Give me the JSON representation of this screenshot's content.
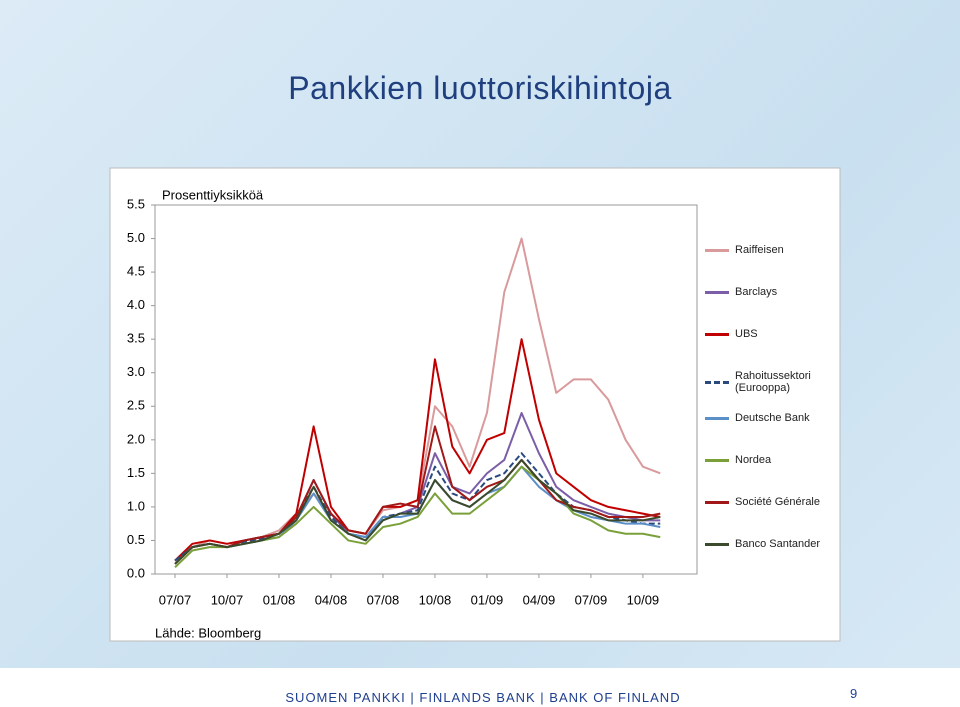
{
  "slide": {
    "title": "Pankkien luottoriskihintoja",
    "footer": "SUOMEN PANKKI | FINLANDS BANK | BANK OF FINLAND",
    "page_number": "9"
  },
  "chart_data": {
    "type": "line",
    "ylabel": "Prosenttiyksikköä",
    "source": "Lähde: Bloomberg",
    "categories": [
      "07/07",
      null,
      null,
      "10/07",
      null,
      null,
      "01/08",
      null,
      null,
      "04/08",
      null,
      null,
      "07/08",
      null,
      null,
      "10/08",
      null,
      null,
      "01/09",
      null,
      null,
      "04/09",
      null,
      null,
      "07/09",
      null,
      null,
      "10/09",
      null
    ],
    "ylim": [
      0,
      5.5
    ],
    "yticks": [
      {
        "value": 0,
        "label": "0.0"
      },
      0.5,
      {
        "value": 1,
        "label": "1.0"
      },
      1.5,
      {
        "value": 2,
        "label": "2.0"
      },
      2.5,
      {
        "value": 3,
        "label": "3.0"
      },
      3.5,
      {
        "value": 4,
        "label": "4.0"
      },
      4.5,
      {
        "value": 5,
        "label": "5.0"
      },
      5.5
    ],
    "legend": "right",
    "series": [
      {
        "name": "Raiffeisen",
        "color": "#d99a9c",
        "dash": "solid",
        "values": [
          0.2,
          0.4,
          0.5,
          0.45,
          0.5,
          0.55,
          0.65,
          0.9,
          1.2,
          0.9,
          0.65,
          0.6,
          0.95,
          1.0,
          1.1,
          2.5,
          2.2,
          1.6,
          2.4,
          4.2,
          5.0,
          3.8,
          2.7,
          2.9,
          2.9,
          2.6,
          2.0,
          1.6,
          1.5
        ]
      },
      {
        "name": "Barclays",
        "color": "#7b5ea7",
        "dash": "solid",
        "values": [
          0.2,
          0.4,
          0.45,
          0.4,
          0.5,
          0.55,
          0.6,
          0.85,
          1.4,
          0.9,
          0.6,
          0.55,
          0.8,
          0.9,
          1.0,
          1.8,
          1.3,
          1.2,
          1.5,
          1.7,
          2.4,
          1.8,
          1.3,
          1.1,
          1.0,
          0.9,
          0.85,
          0.8,
          0.8
        ]
      },
      {
        "name": "UBS",
        "color": "#c00000",
        "dash": "solid",
        "values": [
          0.2,
          0.45,
          0.5,
          0.45,
          0.5,
          0.55,
          0.6,
          0.9,
          2.2,
          1.0,
          0.65,
          0.6,
          1.0,
          1.0,
          1.1,
          3.2,
          1.9,
          1.5,
          2.0,
          2.1,
          3.5,
          2.3,
          1.5,
          1.3,
          1.1,
          1.0,
          0.95,
          0.9,
          0.85
        ]
      },
      {
        "name": "Rahoitussektori (Eurooppa)",
        "color": "#2a4a7f",
        "dash": "dashed",
        "values": [
          0.2,
          0.4,
          0.45,
          0.4,
          0.48,
          0.52,
          0.6,
          0.85,
          1.3,
          0.85,
          0.6,
          0.55,
          0.85,
          0.9,
          0.95,
          1.6,
          1.2,
          1.1,
          1.4,
          1.5,
          1.8,
          1.5,
          1.2,
          1.0,
          0.95,
          0.85,
          0.8,
          0.75,
          0.75
        ]
      },
      {
        "name": "Deutsche Bank",
        "color": "#5b8fc7",
        "dash": "solid",
        "values": [
          0.15,
          0.4,
          0.45,
          0.4,
          0.45,
          0.5,
          0.55,
          0.8,
          1.2,
          0.8,
          0.6,
          0.55,
          0.85,
          0.85,
          0.9,
          1.4,
          1.1,
          1.0,
          1.2,
          1.3,
          1.6,
          1.3,
          1.1,
          0.95,
          0.85,
          0.8,
          0.75,
          0.75,
          0.7
        ]
      },
      {
        "name": "Nordea",
        "color": "#7aa03a",
        "dash": "solid",
        "values": [
          0.1,
          0.35,
          0.4,
          0.4,
          0.45,
          0.5,
          0.55,
          0.75,
          1.0,
          0.75,
          0.5,
          0.45,
          0.7,
          0.75,
          0.85,
          1.2,
          0.9,
          0.9,
          1.1,
          1.3,
          1.6,
          1.4,
          1.2,
          0.9,
          0.8,
          0.65,
          0.6,
          0.6,
          0.55
        ]
      },
      {
        "name": "Société Générale",
        "color": "#a01818",
        "dash": "solid",
        "values": [
          0.15,
          0.4,
          0.45,
          0.4,
          0.5,
          0.55,
          0.6,
          0.85,
          1.4,
          0.9,
          0.65,
          0.6,
          1.0,
          1.05,
          1.0,
          2.2,
          1.3,
          1.1,
          1.3,
          1.4,
          1.7,
          1.4,
          1.1,
          1.0,
          0.95,
          0.85,
          0.85,
          0.85,
          0.9
        ]
      },
      {
        "name": "Banco Santander",
        "color": "#3a4a2a",
        "dash": "solid",
        "values": [
          0.15,
          0.4,
          0.45,
          0.4,
          0.45,
          0.5,
          0.6,
          0.8,
          1.3,
          0.8,
          0.6,
          0.5,
          0.8,
          0.9,
          0.9,
          1.4,
          1.1,
          1.0,
          1.2,
          1.4,
          1.7,
          1.4,
          1.2,
          0.95,
          0.9,
          0.8,
          0.8,
          0.8,
          0.85
        ]
      }
    ]
  }
}
